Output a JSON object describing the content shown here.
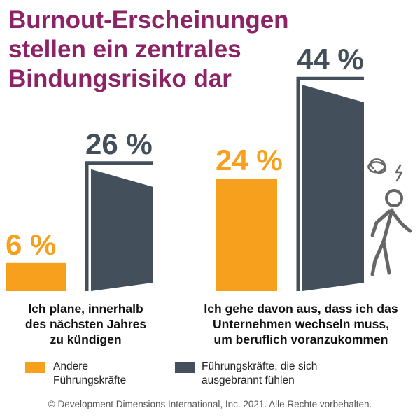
{
  "title_lines": [
    "Burnout-Erscheinungen",
    "stellen ein zentrales",
    "Bindungsrisiko dar"
  ],
  "colors": {
    "title": "#8b2366",
    "orange": "#f7a01e",
    "dark": "#434f5b",
    "text": "#111111"
  },
  "chart_data": {
    "type": "bar",
    "unit": "%",
    "categories": [
      [
        "Ich plane, innerhalb",
        "des nächsten Jahres",
        "zu kündigen"
      ],
      [
        "Ich gehe davon aus, dass ich das",
        "Unternehmen wechseln muss,",
        "um beruflich voranzukommen"
      ]
    ],
    "series": [
      {
        "name": "Andere Führungskräfte",
        "values": [
          6,
          24
        ],
        "labels": [
          "6 %",
          "24 %"
        ],
        "color": "#f7a01e"
      },
      {
        "name": "Führungskräfte, die sich ausgebrannt fühlen",
        "values": [
          26,
          44
        ],
        "labels": [
          "26 %",
          "44 %"
        ],
        "color": "#434f5b"
      }
    ],
    "grid": false
  },
  "legend": [
    {
      "lines": [
        "Andere",
        "Führungskräfte"
      ],
      "color": "#f7a01e"
    },
    {
      "lines": [
        "Führungskräfte, die sich",
        "ausgebrannt fühlen"
      ],
      "color": "#434f5b"
    }
  ],
  "icon": "stressed-walking-person-icon",
  "footer": "© Development Dimensions International, Inc. 2021. Alle Rechte vorbehalten."
}
